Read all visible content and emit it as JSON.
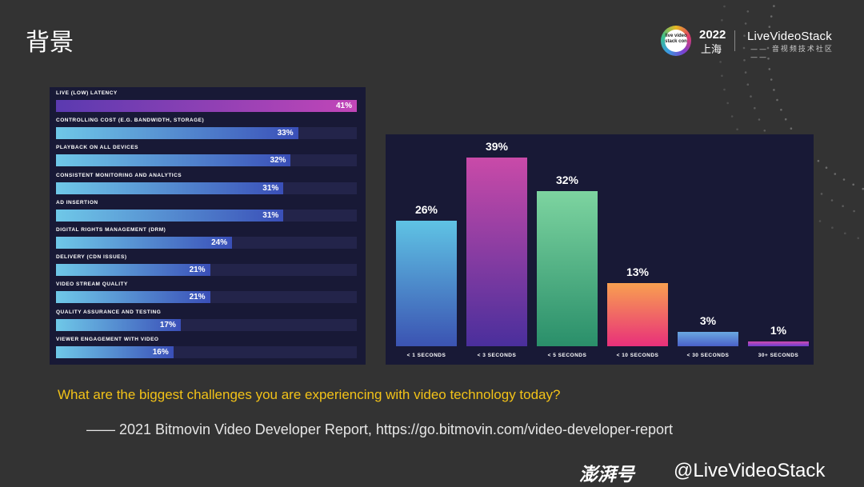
{
  "slide": {
    "title": "背景"
  },
  "branding": {
    "badge_text": "live video stack con",
    "year": "2022",
    "city": "上海",
    "brand": "LiveVideoStack",
    "brand_sub": "—— 音视频技术社区 ——"
  },
  "chart_data": [
    {
      "type": "bar",
      "orientation": "horizontal",
      "categories": [
        "LIVE (LOW) LATENCY",
        "CONTROLLING COST (E.G. BANDWIDTH, STORAGE)",
        "PLAYBACK ON ALL DEVICES",
        "CONSISTENT MONITORING AND ANALYTICS",
        "AD INSERTION",
        "DIGITAL RIGHTS MANAGEMENT (DRM)",
        "DELIVERY (CDN ISSUES)",
        "VIDEO STREAM QUALITY",
        "QUALITY ASSURANCE AND TESTING",
        "VIEWER ENGAGEMENT WITH VIDEO"
      ],
      "values": [
        41,
        33,
        32,
        31,
        31,
        24,
        21,
        21,
        17,
        16
      ],
      "labels": [
        "41%",
        "33%",
        "32%",
        "31%",
        "31%",
        "24%",
        "21%",
        "21%",
        "17%",
        "16%"
      ],
      "xlim": [
        0,
        41
      ],
      "colors": [
        "#b03fb8",
        "#4a5ad0"
      ]
    },
    {
      "type": "bar",
      "orientation": "vertical",
      "categories": [
        "< 1 SECONDS",
        "< 3 SECONDS",
        "< 5 SECONDS",
        "< 10 SECONDS",
        "< 30 SECONDS",
        "30+ SECONDS"
      ],
      "values": [
        26,
        39,
        32,
        13,
        3,
        1
      ],
      "labels": [
        "26%",
        "39%",
        "32%",
        "13%",
        "3%",
        "1%"
      ],
      "ylim": [
        0,
        39
      ],
      "gradients": [
        [
          "#5fc3e4",
          "#3b53b2"
        ],
        [
          "#c94aa8",
          "#4a2f9c"
        ],
        [
          "#7dd4a0",
          "#2a8f6a"
        ],
        [
          "#f8a050",
          "#e8307a"
        ],
        [
          "#6aa8e0",
          "#4a60c8"
        ],
        [
          "#d04ab0",
          "#6a3fd0"
        ]
      ]
    }
  ],
  "caption": {
    "question": "What are the biggest challenges you are experiencing with video technology today?",
    "source": "—— 2021 Bitmovin Video Developer Report, https://go.bitmovin.com/video-developer-report"
  },
  "watermark": {
    "logo": "澎湃号",
    "handle": "@LiveVideoStack"
  }
}
